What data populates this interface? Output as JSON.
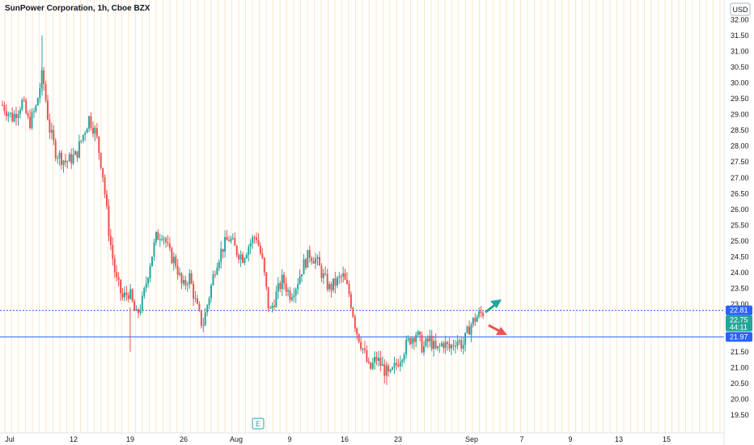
{
  "header": {
    "symbol_line": "SunPower Corporation, 1h, Cboe BZX",
    "currency": "USD"
  },
  "colors": {
    "up": "#26a69a",
    "down": "#ef5350",
    "level_line": "#2962ff",
    "last_price_badge": "#2962ff",
    "current_badge": "#26a69a",
    "session_grid": "#fde7c8",
    "text": "#131722",
    "muted": "#787b86"
  },
  "chart_data": {
    "type": "candlestick",
    "title": "SunPower Corporation, 1h, Cboe BZX",
    "currency": "USD",
    "ylim": [
      19.3,
      32.4
    ],
    "y_ticks": [
      "19.50",
      "20.00",
      "20.50",
      "21.00",
      "21.50",
      "22.00",
      "22.50",
      "23.00",
      "23.50",
      "24.00",
      "24.50",
      "25.00",
      "25.50",
      "26.00",
      "26.50",
      "27.00",
      "27.50",
      "28.00",
      "28.50",
      "29.00",
      "29.50",
      "30.00",
      "30.50",
      "31.00",
      "31.50",
      "32.00"
    ],
    "x_labels": [
      "Jul",
      "12",
      "19",
      "26",
      "Aug",
      "9",
      "16",
      "23",
      "Sep",
      "7",
      "9",
      "13",
      "15"
    ],
    "price_path": [
      {
        "t": 0,
        "p": 29.3
      },
      {
        "t": 3,
        "p": 28.9
      },
      {
        "t": 6,
        "p": 29.4
      },
      {
        "t": 8,
        "p": 28.7
      },
      {
        "t": 10,
        "p": 29.2
      },
      {
        "t": 12,
        "p": 30.3
      },
      {
        "t": 14,
        "p": 28.6
      },
      {
        "t": 16,
        "p": 27.8
      },
      {
        "t": 19,
        "p": 27.5
      },
      {
        "t": 22,
        "p": 27.7
      },
      {
        "t": 24,
        "p": 28.3
      },
      {
        "t": 26,
        "p": 28.9
      },
      {
        "t": 28,
        "p": 28.4
      },
      {
        "t": 30,
        "p": 27.2
      },
      {
        "t": 32,
        "p": 25.2
      },
      {
        "t": 34,
        "p": 23.8
      },
      {
        "t": 36,
        "p": 23.2
      },
      {
        "t": 38,
        "p": 23.4
      },
      {
        "t": 40,
        "p": 22.6
      },
      {
        "t": 42,
        "p": 23.1
      },
      {
        "t": 44,
        "p": 24.2
      },
      {
        "t": 46,
        "p": 25.1
      },
      {
        "t": 48,
        "p": 25.3
      },
      {
        "t": 50,
        "p": 24.6
      },
      {
        "t": 52,
        "p": 24.3
      },
      {
        "t": 54,
        "p": 23.5
      },
      {
        "t": 56,
        "p": 23.9
      },
      {
        "t": 58,
        "p": 23.0
      },
      {
        "t": 60,
        "p": 22.3
      },
      {
        "t": 62,
        "p": 23.3
      },
      {
        "t": 64,
        "p": 24.3
      },
      {
        "t": 66,
        "p": 24.8
      },
      {
        "t": 68,
        "p": 25.1
      },
      {
        "t": 70,
        "p": 24.7
      },
      {
        "t": 72,
        "p": 24.5
      },
      {
        "t": 74,
        "p": 24.9
      },
      {
        "t": 76,
        "p": 25.2
      },
      {
        "t": 78,
        "p": 24.3
      },
      {
        "t": 80,
        "p": 22.7
      },
      {
        "t": 82,
        "p": 23.3
      },
      {
        "t": 84,
        "p": 23.8
      },
      {
        "t": 86,
        "p": 23.3
      },
      {
        "t": 88,
        "p": 23.6
      },
      {
        "t": 90,
        "p": 24.2
      },
      {
        "t": 92,
        "p": 24.6
      },
      {
        "t": 94,
        "p": 24.4
      },
      {
        "t": 96,
        "p": 23.9
      },
      {
        "t": 98,
        "p": 23.5
      },
      {
        "t": 100,
        "p": 23.7
      },
      {
        "t": 102,
        "p": 23.9
      },
      {
        "t": 104,
        "p": 23.3
      },
      {
        "t": 106,
        "p": 22.2
      },
      {
        "t": 108,
        "p": 21.6
      },
      {
        "t": 110,
        "p": 20.9
      },
      {
        "t": 112,
        "p": 21.3
      },
      {
        "t": 114,
        "p": 21.0
      },
      {
        "t": 116,
        "p": 20.7
      },
      {
        "t": 118,
        "p": 21.1
      },
      {
        "t": 120,
        "p": 21.5
      },
      {
        "t": 122,
        "p": 21.9
      },
      {
        "t": 124,
        "p": 22.1
      },
      {
        "t": 126,
        "p": 21.6
      },
      {
        "t": 128,
        "p": 21.9
      },
      {
        "t": 130,
        "p": 21.5
      },
      {
        "t": 132,
        "p": 21.8
      },
      {
        "t": 134,
        "p": 21.6
      },
      {
        "t": 136,
        "p": 21.9
      },
      {
        "t": 138,
        "p": 21.7
      },
      {
        "t": 140,
        "p": 22.3
      },
      {
        "t": 142,
        "p": 22.6
      },
      {
        "t": 144,
        "p": 22.75
      }
    ],
    "horizontal_levels": [
      22.81,
      21.97
    ],
    "price_labels": [
      {
        "value": "22.81",
        "role": "last"
      },
      {
        "value": "22.75",
        "role": "current"
      },
      {
        "value": "21.97",
        "role": "support"
      }
    ],
    "countdown": "44:11",
    "annotations": {
      "earnings_marker": "E",
      "arrows": [
        "up",
        "down"
      ]
    }
  }
}
